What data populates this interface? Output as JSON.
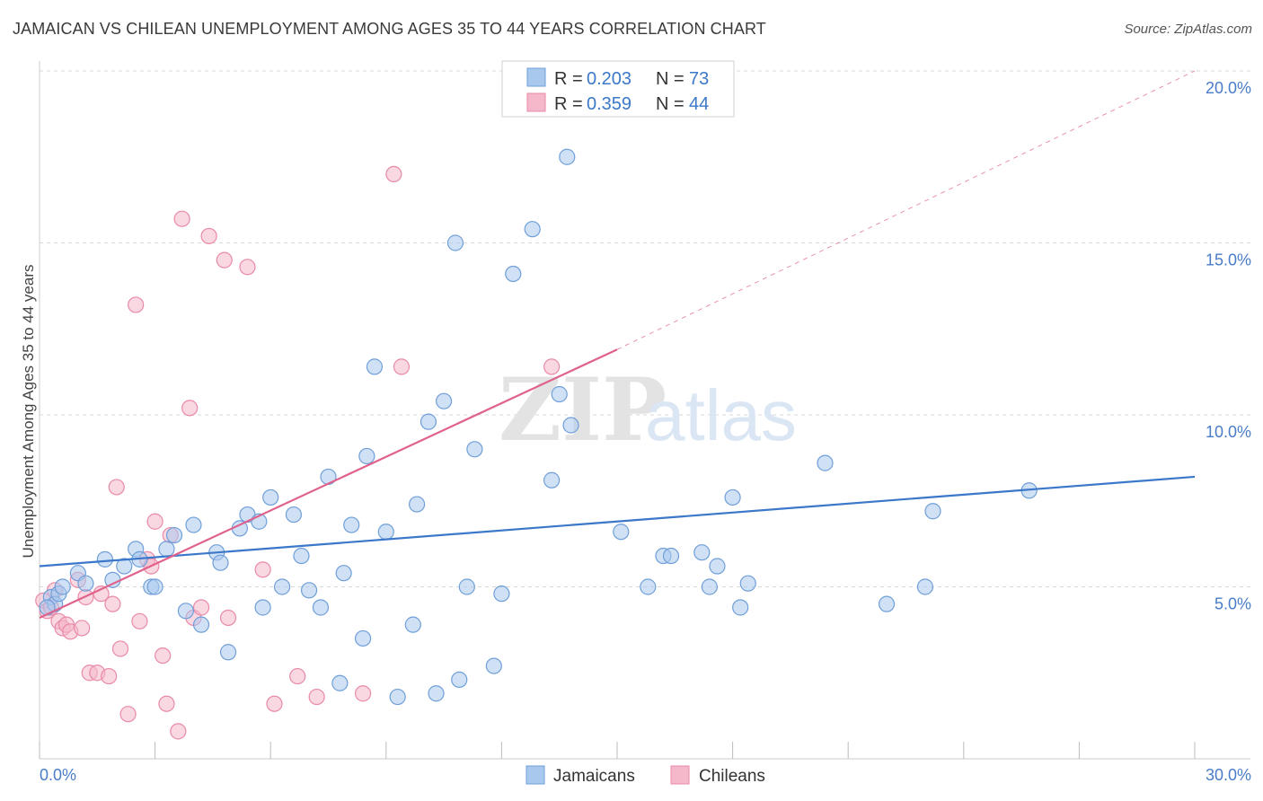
{
  "title": "JAMAICAN VS CHILEAN UNEMPLOYMENT AMONG AGES 35 TO 44 YEARS CORRELATION CHART",
  "source": "Source: ZipAtlas.com",
  "watermark": {
    "zip": "ZIP",
    "atlas": "atlas"
  },
  "colors": {
    "blue_fill": "#a9c8ee",
    "blue_stroke": "#6f9fd8",
    "blue_line": "#3b78c9",
    "pink_fill": "#f4b8ca",
    "pink_stroke": "#e98aa8",
    "pink_line": "#e0628c",
    "grid": "#d8d8d8",
    "axis_text": "#4a7cc7"
  },
  "legend": {
    "rows": [
      {
        "r_label": "R = ",
        "r_value": "0.203",
        "n_label": "N = ",
        "n_value": "73"
      },
      {
        "r_label": "R = ",
        "r_value": "0.359",
        "n_label": "N = ",
        "n_value": "44"
      }
    ]
  },
  "chart_data": {
    "type": "scatter",
    "title": "JAMAICAN VS CHILEAN UNEMPLOYMENT AMONG AGES 35 TO 44 YEARS CORRELATION CHART",
    "xlabel": "",
    "ylabel": "Unemployment Among Ages 35 to 44 years",
    "xlim": [
      0,
      30
    ],
    "ylim": [
      0,
      20
    ],
    "x_tick_labels": [
      {
        "value": 0,
        "label": "0.0%"
      },
      {
        "value": 30,
        "label": "30.0%"
      }
    ],
    "y_tick_labels": [
      {
        "value": 5,
        "label": "5.0%"
      },
      {
        "value": 10,
        "label": "10.0%"
      },
      {
        "value": 15,
        "label": "15.0%"
      },
      {
        "value": 20,
        "label": "20.0%"
      }
    ],
    "grid": true,
    "legend_position": "top-center",
    "series": [
      {
        "name": "Jamaicans",
        "color": "#a9c8ee",
        "R": 0.203,
        "N": 73,
        "trend": {
          "x": [
            0,
            30
          ],
          "y": [
            5.6,
            8.2
          ],
          "dashed_after": null
        },
        "points": [
          [
            0.3,
            4.7
          ],
          [
            0.4,
            4.5
          ],
          [
            0.5,
            4.8
          ],
          [
            0.6,
            5.0
          ],
          [
            1.0,
            5.4
          ],
          [
            1.2,
            5.1
          ],
          [
            1.7,
            5.8
          ],
          [
            1.9,
            5.2
          ],
          [
            2.2,
            5.6
          ],
          [
            2.5,
            6.1
          ],
          [
            2.6,
            5.8
          ],
          [
            2.9,
            5.0
          ],
          [
            3.0,
            5.0
          ],
          [
            3.3,
            6.1
          ],
          [
            3.5,
            6.5
          ],
          [
            3.8,
            4.3
          ],
          [
            4.0,
            6.8
          ],
          [
            4.2,
            3.9
          ],
          [
            4.6,
            6.0
          ],
          [
            4.7,
            5.7
          ],
          [
            4.9,
            3.1
          ],
          [
            5.2,
            6.7
          ],
          [
            5.4,
            7.1
          ],
          [
            5.7,
            6.9
          ],
          [
            5.8,
            4.4
          ],
          [
            6.0,
            7.6
          ],
          [
            6.3,
            5.0
          ],
          [
            6.6,
            7.1
          ],
          [
            6.8,
            5.9
          ],
          [
            7.0,
            4.9
          ],
          [
            7.3,
            4.4
          ],
          [
            7.5,
            8.2
          ],
          [
            7.8,
            2.2
          ],
          [
            7.9,
            5.4
          ],
          [
            8.1,
            6.8
          ],
          [
            8.4,
            3.5
          ],
          [
            8.5,
            8.8
          ],
          [
            8.7,
            11.4
          ],
          [
            9.0,
            6.6
          ],
          [
            9.3,
            1.8
          ],
          [
            9.7,
            3.9
          ],
          [
            9.8,
            7.4
          ],
          [
            10.1,
            9.8
          ],
          [
            10.3,
            1.9
          ],
          [
            10.5,
            10.4
          ],
          [
            10.8,
            15.0
          ],
          [
            10.9,
            2.3
          ],
          [
            11.1,
            5.0
          ],
          [
            11.3,
            9.0
          ],
          [
            11.8,
            2.7
          ],
          [
            12.0,
            4.8
          ],
          [
            12.3,
            14.1
          ],
          [
            12.8,
            15.4
          ],
          [
            13.3,
            8.1
          ],
          [
            13.5,
            10.6
          ],
          [
            13.7,
            17.5
          ],
          [
            13.8,
            9.7
          ],
          [
            15.1,
            6.6
          ],
          [
            15.8,
            5.0
          ],
          [
            16.2,
            5.9
          ],
          [
            16.4,
            5.9
          ],
          [
            17.2,
            6.0
          ],
          [
            17.4,
            5.0
          ],
          [
            17.6,
            5.6
          ],
          [
            18.0,
            7.6
          ],
          [
            18.2,
            4.4
          ],
          [
            18.4,
            5.1
          ],
          [
            20.4,
            8.6
          ],
          [
            22.0,
            4.5
          ],
          [
            23.0,
            5.0
          ],
          [
            23.2,
            7.2
          ],
          [
            25.7,
            7.8
          ],
          [
            0.2,
            4.4
          ]
        ]
      },
      {
        "name": "Chileans",
        "color": "#f4b8ca",
        "R": 0.359,
        "N": 44,
        "trend": {
          "x": [
            0,
            15
          ],
          "y": [
            4.1,
            11.9
          ],
          "dashed_to": [
            30,
            20
          ]
        },
        "points": [
          [
            0.1,
            4.6
          ],
          [
            0.2,
            4.3
          ],
          [
            0.3,
            4.4
          ],
          [
            0.4,
            4.9
          ],
          [
            0.5,
            4.0
          ],
          [
            0.6,
            3.8
          ],
          [
            0.7,
            3.9
          ],
          [
            0.8,
            3.7
          ],
          [
            1.0,
            5.2
          ],
          [
            1.1,
            3.8
          ],
          [
            1.2,
            4.7
          ],
          [
            1.3,
            2.5
          ],
          [
            1.5,
            2.5
          ],
          [
            1.6,
            4.8
          ],
          [
            1.8,
            2.4
          ],
          [
            1.9,
            4.5
          ],
          [
            2.0,
            7.9
          ],
          [
            2.1,
            3.2
          ],
          [
            2.3,
            1.3
          ],
          [
            2.5,
            13.2
          ],
          [
            2.6,
            4.0
          ],
          [
            2.8,
            5.8
          ],
          [
            2.9,
            5.6
          ],
          [
            3.0,
            6.9
          ],
          [
            3.2,
            3.0
          ],
          [
            3.3,
            1.6
          ],
          [
            3.4,
            6.5
          ],
          [
            3.6,
            0.8
          ],
          [
            3.7,
            15.7
          ],
          [
            3.9,
            10.2
          ],
          [
            4.0,
            4.1
          ],
          [
            4.2,
            4.4
          ],
          [
            4.4,
            15.2
          ],
          [
            4.8,
            14.5
          ],
          [
            4.9,
            4.1
          ],
          [
            5.4,
            14.3
          ],
          [
            5.8,
            5.5
          ],
          [
            6.1,
            1.6
          ],
          [
            6.7,
            2.4
          ],
          [
            7.2,
            1.8
          ],
          [
            8.4,
            1.9
          ],
          [
            9.2,
            17.0
          ],
          [
            9.4,
            11.4
          ],
          [
            13.3,
            11.4
          ]
        ]
      }
    ]
  }
}
